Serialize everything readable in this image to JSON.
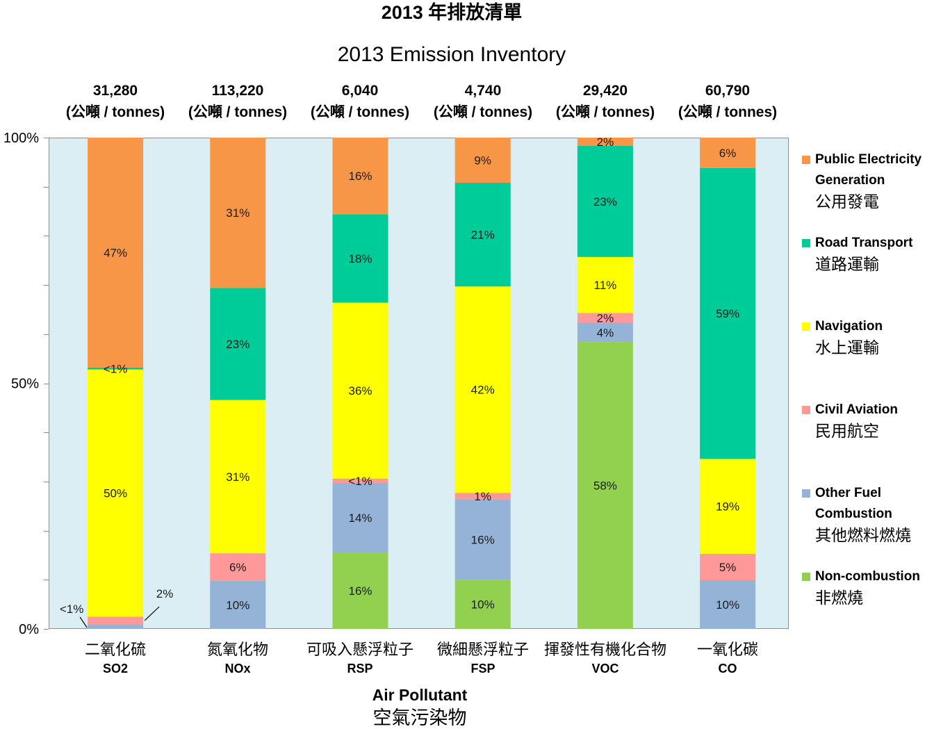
{
  "chart_data": {
    "type": "bar",
    "stacking": "percent",
    "title": "2013 年排放清單",
    "subtitle": "2013 Emission Inventory",
    "xlabel": "Air Pollutant",
    "xlabel_zh": "空氣污染物",
    "ylim": [
      0,
      100
    ],
    "y_ticks": [
      {
        "value": 0,
        "label": "0%"
      },
      {
        "value": 50,
        "label": "50%"
      },
      {
        "value": 100,
        "label": "100%"
      }
    ],
    "y_minor_tick_step": 10,
    "grid": false,
    "legend": "right",
    "plot_background": "#DAEEF3",
    "total_unit": "(公噸 / tonnes)",
    "categories": [
      {
        "name_zh": "二氧化硫",
        "code": "SO2",
        "total": "31,280"
      },
      {
        "name_zh": "氮氧化物",
        "code": "NOx",
        "total": "113,220"
      },
      {
        "name_zh": "可吸入懸浮粒子",
        "code": "RSP",
        "total": "6,040"
      },
      {
        "name_zh": "微細懸浮粒子",
        "code": "FSP",
        "total": "4,740"
      },
      {
        "name_zh": "揮發性有機化合物",
        "code": "VOC",
        "total": "29,420"
      },
      {
        "name_zh": "一氧化碳",
        "code": "CO",
        "total": "60,790"
      }
    ],
    "series": [
      {
        "name": "Public Electricity Generation",
        "name_zh": "公用發電",
        "color": "#F79646",
        "values": [
          46.8,
          30.6,
          15.6,
          9.2,
          1.7,
          6.2
        ],
        "labels": [
          "47%",
          "31%",
          "16%",
          "9%",
          "2%",
          "6%"
        ]
      },
      {
        "name": "Road Transport",
        "name_zh": "道路運輸",
        "color": "#00CC99",
        "values": [
          0.4,
          22.8,
          18.0,
          21.1,
          22.6,
          59.2
        ],
        "labels": [
          "<1%",
          "23%",
          "18%",
          "21%",
          "23%",
          "59%"
        ]
      },
      {
        "name": "Navigation",
        "name_zh": "水上運輸",
        "color": "#FFFF00",
        "values": [
          50.3,
          31.2,
          35.8,
          42.0,
          11.4,
          19.3
        ],
        "labels": [
          "50%",
          "31%",
          "36%",
          "42%",
          "11%",
          "19%"
        ]
      },
      {
        "name": "Civil Aviation",
        "name_zh": "民用航空",
        "color": "#FF9999",
        "values": [
          1.6,
          5.6,
          0.9,
          1.3,
          2.0,
          5.4
        ],
        "labels": [
          "2%",
          "6%",
          "<1%",
          "1%",
          "2%",
          "5%"
        ]
      },
      {
        "name": "Other Fuel Combustion",
        "name_zh": "其他燃料燃燒",
        "color": "#95B3D7",
        "values": [
          0.9,
          9.8,
          14.1,
          16.4,
          3.9,
          9.9
        ],
        "labels": [
          "<1%",
          "10%",
          "14%",
          "16%",
          "4%",
          "10%"
        ]
      },
      {
        "name": "Non-combustion",
        "name_zh": "非燃燒",
        "color": "#92D050",
        "values": [
          0,
          0,
          15.6,
          10.0,
          58.4,
          0
        ],
        "labels": [
          null,
          null,
          "16%",
          "10%",
          "58%",
          null
        ]
      }
    ]
  }
}
